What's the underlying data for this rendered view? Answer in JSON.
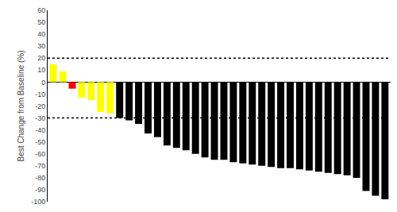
{
  "chart_data": {
    "type": "bar",
    "ylabel": "Best Change from Baseline (%)",
    "categories": [
      null,
      null,
      null,
      null,
      null,
      null,
      null,
      null,
      null,
      null,
      null,
      null,
      null,
      null,
      null,
      null,
      null,
      null,
      null,
      null,
      null,
      null,
      null,
      null,
      null,
      null,
      null,
      null,
      null,
      null,
      null,
      null,
      null,
      null,
      null,
      null
    ],
    "values": [
      15,
      9,
      -5.5,
      -13,
      -15,
      -25,
      -26,
      -30,
      -32,
      -35,
      -43,
      -46,
      -53,
      -55,
      -57,
      -60,
      -63,
      -65,
      -65,
      -67,
      -68,
      -69,
      -70,
      -71,
      -72,
      -72,
      -73,
      -74,
      -75,
      -76,
      -77,
      -78,
      -80,
      -91,
      -95,
      -98
    ],
    "colors": [
      "yellow",
      "yellow",
      "red",
      "yellow",
      "yellow",
      "yellow",
      "yellow",
      "black",
      "black",
      "black",
      "black",
      "black",
      "black",
      "black",
      "black",
      "black",
      "black",
      "black",
      "black",
      "black",
      "black",
      "black",
      "black",
      "black",
      "black",
      "black",
      "black",
      "black",
      "black",
      "black",
      "black",
      "black",
      "black",
      "black",
      "black",
      "black"
    ],
    "hlines": [
      20,
      -30
    ],
    "ylim": [
      -100,
      60
    ],
    "yticks": [
      -100,
      -90,
      -80,
      -70,
      -60,
      -50,
      -40,
      -30,
      -20,
      -10,
      0,
      10,
      20,
      30,
      40,
      50,
      60
    ],
    "grid": false,
    "tick_labels": "y"
  }
}
